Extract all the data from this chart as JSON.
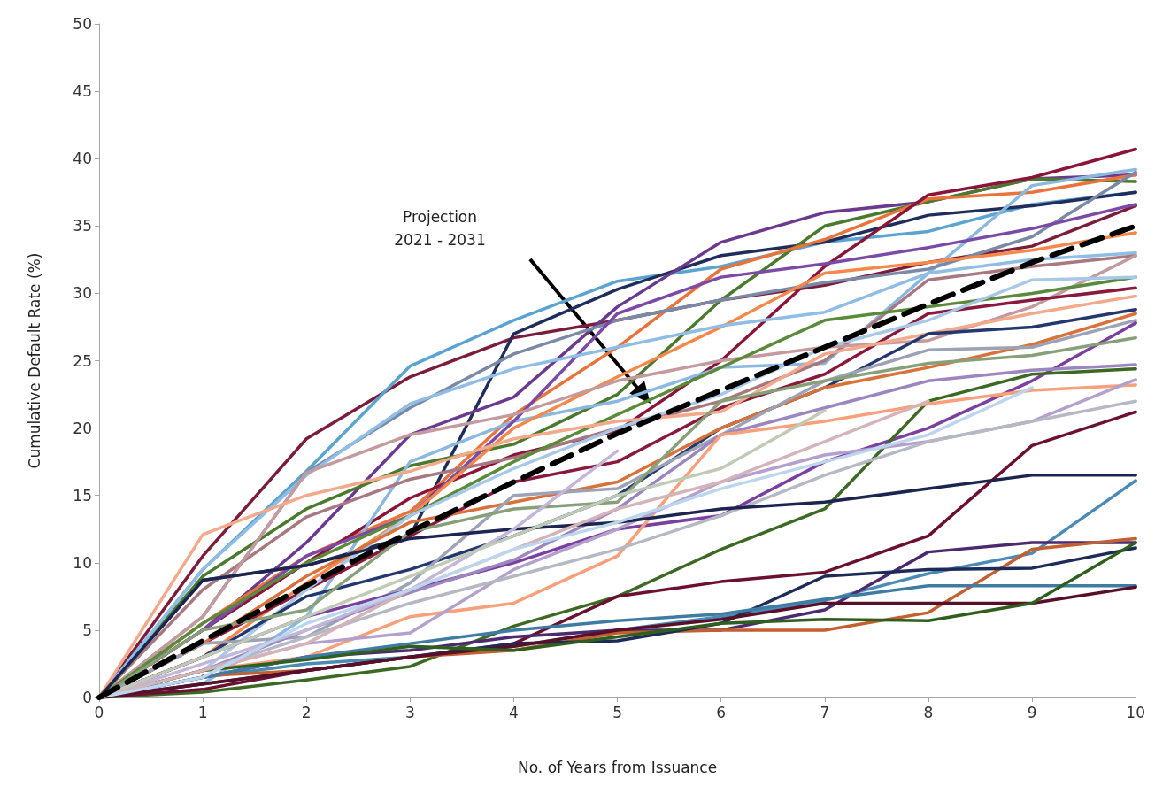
{
  "chart_data": {
    "type": "line",
    "xlabel": "No. of Years from Issuance",
    "ylabel": "Cumulative Default Rate (%)",
    "x": [
      0,
      1,
      2,
      3,
      4,
      5,
      6,
      7,
      8,
      9,
      10
    ],
    "xlim": [
      0,
      10
    ],
    "xticks": [
      0,
      1,
      2,
      3,
      4,
      5,
      6,
      7,
      8,
      9,
      10
    ],
    "ylim": [
      0,
      50
    ],
    "yticks": [
      0,
      5,
      10,
      15,
      20,
      25,
      30,
      35,
      40,
      45,
      50
    ],
    "grid": false,
    "marker": "none",
    "annotations": [
      "Projection\n2021 - 2031"
    ],
    "series": [
      {
        "color": "#7b1c3a",
        "values": [
          0,
          10.5,
          19.2,
          23.8,
          26.7,
          28.0,
          29.5,
          30.6,
          32.3,
          33.5,
          36.5
        ]
      },
      {
        "color": "#5ba3d0",
        "values": [
          0,
          9.5,
          16.8,
          24.6,
          28.0,
          30.9,
          32.0,
          33.8,
          34.6,
          36.6,
          37.5
        ]
      },
      {
        "color": "#1f2d5c",
        "values": [
          0,
          8.7,
          9.8,
          12.0,
          27.0,
          30.3,
          32.8,
          33.8,
          35.8,
          36.5,
          37.5
        ]
      },
      {
        "color": "#6b3a8f",
        "values": [
          0,
          5,
          11.5,
          19.5,
          22.3,
          29.0,
          33.8,
          36.0,
          36.8,
          38.5,
          38.8
        ]
      },
      {
        "color": "#4a7a2e",
        "values": [
          0,
          9,
          14,
          17.2,
          18.8,
          22.5,
          29.5,
          35.0,
          36.8,
          38.5,
          38.3
        ]
      },
      {
        "color": "#e8743b",
        "values": [
          0,
          5.5,
          10.5,
          13.8,
          21.0,
          26.0,
          31.8,
          34.0,
          37.0,
          37.5,
          38.8
        ]
      },
      {
        "color": "#8b1538",
        "values": [
          0,
          5,
          10,
          14.8,
          18.0,
          19.8,
          25.0,
          32.0,
          37.3,
          38.6,
          40.7
        ]
      },
      {
        "color": "#8ab8e0",
        "values": [
          0,
          1,
          6,
          17.5,
          20.5,
          22,
          24.5,
          24.8,
          31.5,
          38.0,
          39.2
        ]
      },
      {
        "color": "#7a8aa6",
        "values": [
          0,
          6,
          16.7,
          21.5,
          25.5,
          28,
          29.5,
          30.8,
          31.8,
          34.2,
          39
        ]
      },
      {
        "color": "#7b4aa6",
        "values": [
          0,
          5,
          10.5,
          13.5,
          20.5,
          28.5,
          31.2,
          32.2,
          33.4,
          34.8,
          36.6
        ]
      },
      {
        "color": "#f5884a",
        "values": [
          0,
          3,
          8.5,
          13.5,
          20,
          23.8,
          27.5,
          31.5,
          32.3,
          33.2,
          34.5
        ]
      },
      {
        "color": "#8fbde6",
        "values": [
          0,
          9.5,
          16.5,
          21.8,
          24.4,
          26,
          27.6,
          28.6,
          31.5,
          32.5,
          33
        ]
      },
      {
        "color": "#a7787f",
        "values": [
          0,
          8,
          13.4,
          16.2,
          17.8,
          20,
          22,
          25,
          31,
          32,
          32.8
        ]
      },
      {
        "color": "#c49a9f",
        "values": [
          0,
          6,
          16.7,
          19.5,
          21,
          23.5,
          25,
          26,
          26.5,
          29,
          32.8
        ]
      },
      {
        "color": "#5a8a3a",
        "values": [
          0,
          5.5,
          10,
          13.5,
          17.5,
          21,
          24.5,
          28,
          29,
          30,
          31.2
        ]
      },
      {
        "color": "#8a1a3c",
        "values": [
          0,
          4,
          8,
          12,
          16,
          17.5,
          21.5,
          24,
          28.5,
          29.5,
          30.4
        ]
      },
      {
        "color": "#f4a98a",
        "values": [
          0,
          12.1,
          15,
          16.8,
          19.2,
          20.5,
          21.2,
          25.5,
          27,
          28.5,
          29.8
        ]
      },
      {
        "color": "#a8c8e8",
        "values": [
          0,
          2,
          8,
          13.5,
          17,
          20,
          22.5,
          26,
          28,
          31,
          31.2
        ]
      },
      {
        "color": "#243870",
        "values": [
          0,
          3,
          7.5,
          9.5,
          12.0,
          15,
          20,
          23,
          27,
          27.5,
          28.8
        ]
      },
      {
        "color": "#d9713a",
        "values": [
          0,
          4,
          9,
          13,
          14.5,
          16,
          20,
          23,
          24.5,
          26.2,
          28.5
        ]
      },
      {
        "color": "#9ca3b5",
        "values": [
          0,
          4,
          4.5,
          8.5,
          15,
          15.5,
          19.5,
          23.5,
          25.8,
          26.0,
          28.0
        ]
      },
      {
        "color": "#7b3fa0",
        "values": [
          0,
          3,
          6,
          8,
          10,
          12.5,
          13.5,
          17.5,
          20,
          23.5,
          27.8
        ]
      },
      {
        "color": "#88a07a",
        "values": [
          0,
          5,
          6.5,
          12.3,
          14,
          14.5,
          22,
          23.5,
          24.8,
          25.4,
          26.7
        ]
      },
      {
        "color": "#3c6a25",
        "values": [
          0,
          0.4,
          1.3,
          2.3,
          5.3,
          7.5,
          11,
          14,
          22,
          24,
          24.4
        ]
      },
      {
        "color": "#9b86c0",
        "values": [
          0,
          2,
          5,
          7.8,
          10.2,
          14,
          19.5,
          21.5,
          23.5,
          24.3,
          24.7
        ]
      },
      {
        "color": "#f7a07a",
        "values": [
          0,
          2,
          3,
          6,
          7,
          10.5,
          19.5,
          20.5,
          21.8,
          22.8,
          23.2
        ]
      },
      {
        "color": "#b4a0cc",
        "values": [
          0,
          2,
          4,
          4.8,
          9.5,
          12.5,
          16,
          18,
          19,
          20.5,
          23.6
        ]
      },
      {
        "color": "#b5b9c4",
        "values": [
          0,
          2,
          4.5,
          7,
          9,
          11,
          13.5,
          16.5,
          19,
          20.5,
          22
        ]
      },
      {
        "color": "#6b1030",
        "values": [
          0,
          0.6,
          2,
          3,
          4,
          7.5,
          8.6,
          9.3,
          12,
          18.7,
          21.2
        ]
      },
      {
        "color": "#1c2550",
        "values": [
          0,
          8.7,
          9.8,
          11.8,
          12.5,
          13,
          14,
          14.5,
          15.5,
          16.5,
          16.5
        ]
      },
      {
        "color": "#4a8bb5",
        "values": [
          0,
          1.5,
          2.5,
          3,
          3.8,
          5,
          6,
          7.2,
          9.2,
          10.7,
          16.1
        ]
      },
      {
        "color": "#4b2a6f",
        "values": [
          0,
          1.5,
          3,
          3.5,
          4.5,
          5,
          5,
          6.5,
          10.8,
          11.5,
          11.5
        ]
      },
      {
        "color": "#c45f2f",
        "values": [
          null,
          1.6,
          2,
          3,
          3.5,
          4.8,
          5,
          5,
          6.3,
          11,
          11.8
        ]
      },
      {
        "color": "#1d2b5a",
        "values": [
          0,
          1,
          2,
          3,
          4,
          4.2,
          5.5,
          9,
          9.5,
          9.6,
          11.1
        ]
      },
      {
        "color": "#3f7ba3",
        "values": [
          0,
          1.5,
          3,
          4,
          5,
          5.7,
          6.2,
          7.3,
          8.3,
          8.3,
          8.3
        ]
      },
      {
        "color": "#5a0f28",
        "values": [
          0,
          1,
          2,
          3,
          3.8,
          5,
          5.8,
          7,
          7,
          7,
          8.2
        ]
      },
      {
        "color": "#2f5f1e",
        "values": [
          0,
          2,
          2.8,
          3.8,
          3.5,
          4.5,
          5.5,
          5.8,
          5.7,
          7,
          11.5
        ]
      },
      {
        "color": "#c2b6d9",
        "values": [
          0,
          2.5,
          5,
          8,
          12.5,
          18.3,
          null,
          null,
          null,
          null,
          null
        ]
      },
      {
        "color": "#c0cbb6",
        "values": [
          0,
          3,
          6,
          9,
          12,
          15,
          17,
          21.3,
          null,
          null,
          null
        ]
      },
      {
        "color": "#d4b4b8",
        "values": [
          0,
          2,
          4,
          8,
          11,
          14,
          16,
          19,
          22,
          null,
          null
        ]
      },
      {
        "color": "#bcd6ee",
        "values": [
          0,
          1.5,
          5.5,
          8,
          11,
          13,
          15.5,
          17.5,
          19.5,
          23,
          null
        ]
      },
      {
        "color": "#000000",
        "line_style": "dashed",
        "values": [
          0,
          4.2,
          8.3,
          12.3,
          16,
          19.6,
          22.8,
          26,
          29.2,
          32.3,
          35
        ]
      }
    ]
  }
}
